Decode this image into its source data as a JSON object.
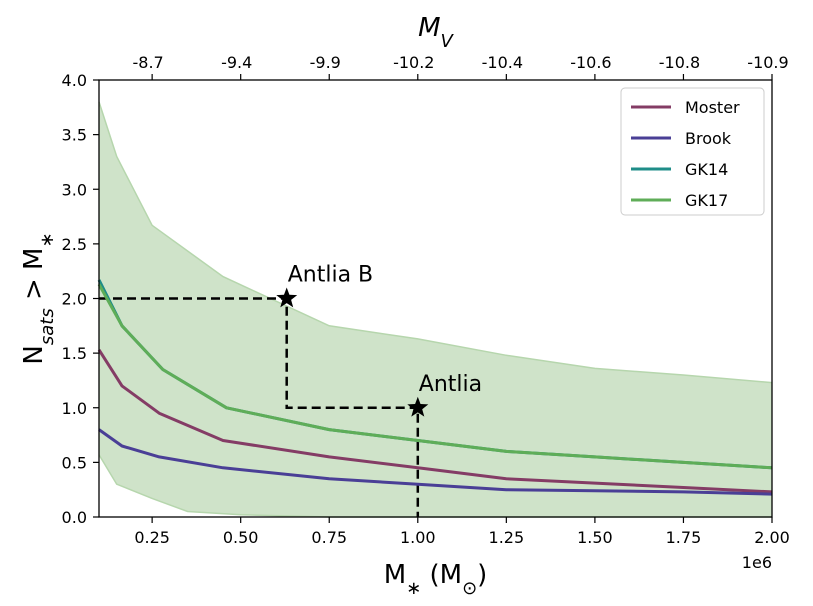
{
  "chart_data": {
    "type": "line",
    "title": "",
    "xlabel": "M",
    "xlabel_sub": "∗",
    "xlabel_unit_open": " (M",
    "xlabel_unit_sub": "⊙",
    "xlabel_unit_close": ")",
    "x_offset_label": "1e6",
    "ylabel": "N",
    "ylabel_sub": "sats",
    "ylabel_rest": " > M",
    "ylabel_rest_sub": "∗",
    "top_xlabel": "M",
    "top_xlabel_sub": "V",
    "xlim": [
      100000,
      2000000
    ],
    "ylim": [
      0.0,
      4.0
    ],
    "x_ticks": [
      {
        "value": 250000,
        "label": "0.25"
      },
      {
        "value": 500000,
        "label": "0.50"
      },
      {
        "value": 750000,
        "label": "0.75"
      },
      {
        "value": 1000000,
        "label": "1.00"
      },
      {
        "value": 1250000,
        "label": "1.25"
      },
      {
        "value": 1500000,
        "label": "1.50"
      },
      {
        "value": 1750000,
        "label": "1.75"
      },
      {
        "value": 2000000,
        "label": "2.00"
      }
    ],
    "y_ticks": [
      {
        "value": 0.0,
        "label": "0.0"
      },
      {
        "value": 0.5,
        "label": "0.5"
      },
      {
        "value": 1.0,
        "label": "1.0"
      },
      {
        "value": 1.5,
        "label": "1.5"
      },
      {
        "value": 2.0,
        "label": "2.0"
      },
      {
        "value": 2.5,
        "label": "2.5"
      },
      {
        "value": 3.0,
        "label": "3.0"
      },
      {
        "value": 3.5,
        "label": "3.5"
      },
      {
        "value": 4.0,
        "label": "4.0"
      }
    ],
    "top_ticks": [
      {
        "value": 250000,
        "label": "-8.7"
      },
      {
        "value": 500000,
        "label": "-9.4"
      },
      {
        "value": 750000,
        "label": "-9.9"
      },
      {
        "value": 1000000,
        "label": "-10.2"
      },
      {
        "value": 1250000,
        "label": "-10.4"
      },
      {
        "value": 1500000,
        "label": "-10.6"
      },
      {
        "value": 1750000,
        "label": "-10.8"
      },
      {
        "value": 2000000,
        "label": "-10.9"
      }
    ],
    "grid": false,
    "legend_position": "top-right",
    "band": {
      "color": "#cfe3c9",
      "edge_color": "#b6d6ad",
      "upper": [
        [
          100000,
          3.8
        ],
        [
          150000,
          3.3
        ],
        [
          250000,
          2.67
        ],
        [
          450000,
          2.2
        ],
        [
          750000,
          1.75
        ],
        [
          1000000,
          1.63
        ],
        [
          1250000,
          1.48
        ],
        [
          1500000,
          1.36
        ],
        [
          1750000,
          1.3
        ],
        [
          2000000,
          1.23
        ]
      ],
      "lower": [
        [
          100000,
          0.57
        ],
        [
          150000,
          0.3
        ],
        [
          250000,
          0.17
        ],
        [
          350000,
          0.05
        ],
        [
          500000,
          0.02
        ],
        [
          750000,
          0.0
        ],
        [
          2000000,
          0.0
        ]
      ]
    },
    "series": [
      {
        "name": "Moster",
        "color": "#843c65",
        "points": [
          [
            100000,
            1.53
          ],
          [
            165000,
            1.2
          ],
          [
            270000,
            0.95
          ],
          [
            450000,
            0.7
          ],
          [
            750000,
            0.55
          ],
          [
            1000000,
            0.45
          ],
          [
            1250000,
            0.35
          ],
          [
            1500000,
            0.31
          ],
          [
            1750000,
            0.27
          ],
          [
            2000000,
            0.23
          ]
        ]
      },
      {
        "name": "Brook",
        "color": "#4a3f96",
        "points": [
          [
            100000,
            0.8
          ],
          [
            165000,
            0.65
          ],
          [
            270000,
            0.55
          ],
          [
            450000,
            0.45
          ],
          [
            750000,
            0.35
          ],
          [
            1000000,
            0.3
          ],
          [
            1250000,
            0.25
          ],
          [
            1500000,
            0.24
          ],
          [
            1750000,
            0.23
          ],
          [
            2000000,
            0.21
          ]
        ]
      },
      {
        "name": "GK14",
        "color": "#1f8d88",
        "points": [
          [
            100000,
            2.17
          ],
          [
            165000,
            1.75
          ],
          [
            280000,
            1.35
          ],
          [
            460000,
            1.0
          ],
          [
            750000,
            0.8
          ],
          [
            1000000,
            0.7
          ],
          [
            1250000,
            0.6
          ],
          [
            1500000,
            0.55
          ],
          [
            1750000,
            0.5
          ],
          [
            2000000,
            0.45
          ]
        ]
      },
      {
        "name": "GK17",
        "color": "#5fad58",
        "points": [
          [
            100000,
            2.13
          ],
          [
            165000,
            1.75
          ],
          [
            280000,
            1.35
          ],
          [
            460000,
            1.0
          ],
          [
            750000,
            0.8
          ],
          [
            1000000,
            0.7
          ],
          [
            1250000,
            0.6
          ],
          [
            1500000,
            0.55
          ],
          [
            1750000,
            0.5
          ],
          [
            2000000,
            0.45
          ]
        ]
      }
    ],
    "annotations": [
      {
        "label": "Antlia B",
        "x": 630000,
        "y": 2.0
      },
      {
        "label": "Antlia",
        "x": 1000000,
        "y": 1.0
      }
    ],
    "dashed_guides": [
      [
        [
          100000,
          2.0
        ],
        [
          630000,
          2.0
        ],
        [
          630000,
          1.0
        ],
        [
          1000000,
          1.0
        ],
        [
          1000000,
          0.0
        ]
      ]
    ]
  }
}
